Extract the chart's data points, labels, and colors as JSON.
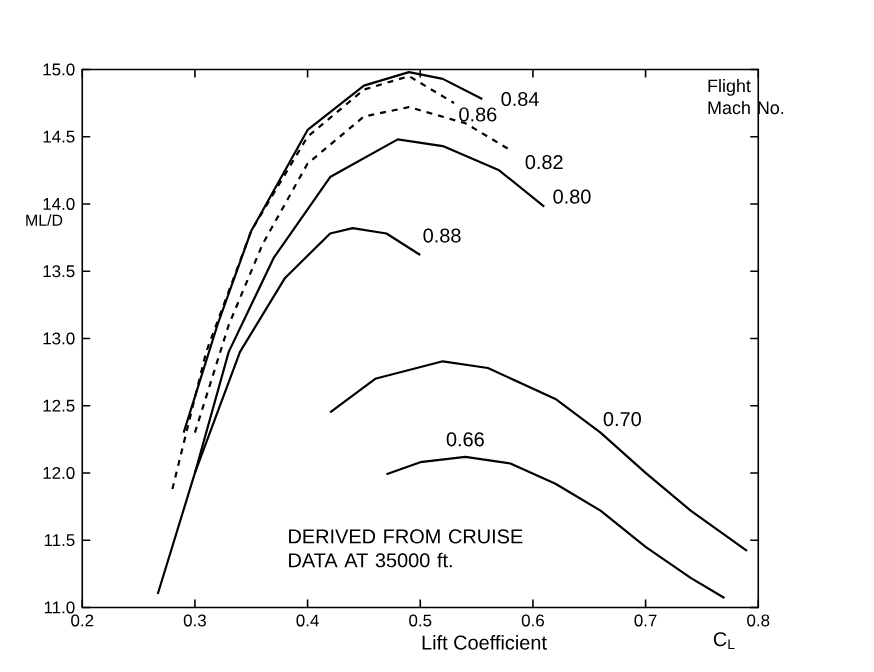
{
  "chart_data": {
    "type": "line",
    "xlabel": "Lift Coefficient",
    "ylabel": "ML/D",
    "legend_title": "Flight Mach No.",
    "annotations": [
      "DERIVED FROM CRUISE DATA AT 35000 ft.",
      {
        "text": "C$_{L}$",
        "x": 0.77,
        "y": 11.0
      }
    ],
    "xlim": [
      0.2,
      0.8
    ],
    "ylim": [
      11.0,
      15.0
    ],
    "xticks": [
      0.2,
      0.3,
      0.4,
      0.5,
      0.6,
      0.7,
      0.8
    ],
    "yticks": [
      {
        "value": 11,
        "label": "11.0"
      },
      {
        "value": 11.5,
        "label": "11.5"
      },
      {
        "value": 12,
        "label": "12.0"
      },
      {
        "value": 12.5,
        "label": "12.5"
      },
      {
        "value": 13,
        "label": "13.0"
      },
      {
        "value": 13.5,
        "label": "13.5"
      },
      {
        "value": 14,
        "label": "14.0"
      },
      {
        "value": 14.5,
        "label": "14.5"
      },
      {
        "value": 15,
        "label": "15.0"
      }
    ],
    "grid": false,
    "marker": "none",
    "series": [
      {
        "name": "0.84",
        "color": "#000000",
        "line_style": "solid",
        "x": [
          0.29,
          0.32,
          0.35,
          0.4,
          0.45,
          0.49,
          0.52,
          0.555
        ],
        "values": [
          12.3,
          13.1,
          13.8,
          14.55,
          14.88,
          14.98,
          14.93,
          14.78
        ]
      },
      {
        "name": "0.86",
        "color": "#000000",
        "line_style": "dashed",
        "x": [
          0.28,
          0.31,
          0.35,
          0.4,
          0.45,
          0.49,
          0.53
        ],
        "values": [
          11.88,
          12.9,
          13.8,
          14.5,
          14.85,
          14.95,
          14.75
        ]
      },
      {
        "name": "0.82",
        "color": "#000000",
        "line_style": "dashed",
        "x": [
          0.3,
          0.33,
          0.36,
          0.4,
          0.45,
          0.49,
          0.54,
          0.58
        ],
        "values": [
          12.3,
          13.1,
          13.7,
          14.3,
          14.65,
          14.72,
          14.6,
          14.4
        ]
      },
      {
        "name": "0.80",
        "color": "#000000",
        "line_style": "solid",
        "x": [
          0.3,
          0.33,
          0.37,
          0.42,
          0.48,
          0.52,
          0.57,
          0.61
        ],
        "values": [
          12.0,
          12.9,
          13.6,
          14.2,
          14.48,
          14.43,
          14.25,
          13.98
        ]
      },
      {
        "name": "0.88",
        "color": "#000000",
        "line_style": "solid",
        "x": [
          0.267,
          0.3,
          0.34,
          0.38,
          0.42,
          0.44,
          0.47,
          0.5
        ],
        "values": [
          11.1,
          12.0,
          12.9,
          13.45,
          13.78,
          13.82,
          13.78,
          13.62
        ]
      },
      {
        "name": "0.70",
        "color": "#000000",
        "line_style": "solid",
        "x": [
          0.42,
          0.46,
          0.52,
          0.56,
          0.62,
          0.66,
          0.7,
          0.74,
          0.79
        ],
        "values": [
          12.45,
          12.7,
          12.83,
          12.78,
          12.55,
          12.3,
          12.0,
          11.72,
          11.42
        ]
      },
      {
        "name": "0.66",
        "color": "#000000",
        "line_style": "solid",
        "x": [
          0.47,
          0.5,
          0.54,
          0.58,
          0.62,
          0.66,
          0.7,
          0.74,
          0.77
        ],
        "values": [
          11.99,
          12.08,
          12.12,
          12.07,
          11.92,
          11.72,
          11.45,
          11.22,
          11.07
        ]
      }
    ]
  }
}
